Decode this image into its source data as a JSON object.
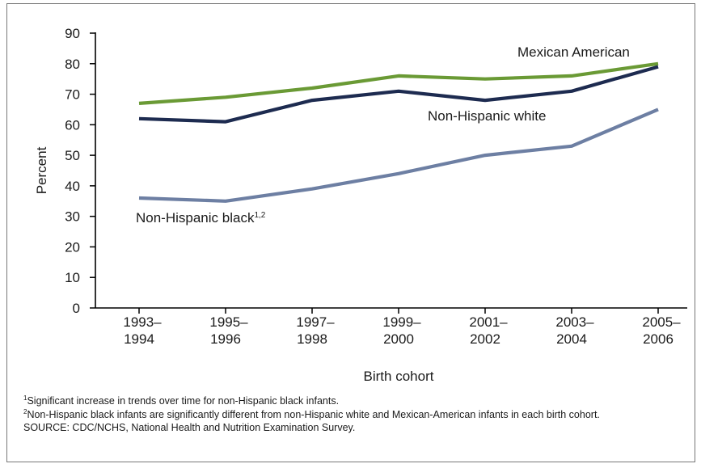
{
  "chart_data": {
    "type": "line",
    "title": "",
    "xlabel": "Birth cohort",
    "ylabel": "Percent",
    "ylim": [
      0,
      90
    ],
    "yticks": [
      0,
      10,
      20,
      30,
      40,
      50,
      60,
      70,
      80,
      90
    ],
    "categories": [
      [
        "1993–",
        "1994"
      ],
      [
        "1995–",
        "1996"
      ],
      [
        "1997–",
        "1998"
      ],
      [
        "1999–",
        "2000"
      ],
      [
        "2001–",
        "2002"
      ],
      [
        "2003–",
        "2004"
      ],
      [
        "2005–",
        "2006"
      ]
    ],
    "grid": false,
    "series": [
      {
        "name": "Mexican American",
        "sup": "",
        "color": "#6a9a35",
        "values": [
          67,
          69,
          72,
          76,
          75,
          76,
          80
        ]
      },
      {
        "name": "Non-Hispanic  white",
        "sup": "",
        "color": "#1d2b50",
        "values": [
          62,
          61,
          68,
          71,
          68,
          71,
          79
        ]
      },
      {
        "name": "Non-Hispanic black",
        "sup": "1,2",
        "color": "#6d7fa3",
        "values": [
          36,
          35,
          39,
          44,
          50,
          53,
          65
        ]
      }
    ]
  },
  "footnotes": [
    {
      "sup": "1",
      "text": "Significant increase in trends over time for non-Hispanic black infants."
    },
    {
      "sup": "2",
      "text": "Non-Hispanic black infants are significantly different from non-Hispanic white and Mexican-American infants in each birth cohort."
    },
    {
      "sup": "",
      "text": "SOURCE: CDC/NCHS, National Health and Nutrition Examination Survey."
    }
  ]
}
